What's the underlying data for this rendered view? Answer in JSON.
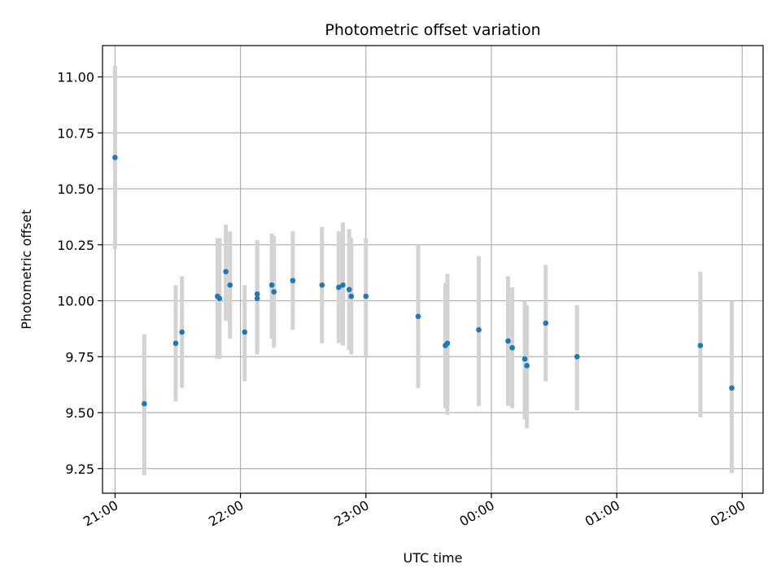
{
  "chart_data": {
    "type": "scatter",
    "title": "Photometric offset variation",
    "xlabel": "UTC time",
    "ylabel": "Photometric offset",
    "x_axis": "time",
    "xlim": [
      "20:54",
      "02:10"
    ],
    "ylim": [
      9.14,
      11.14
    ],
    "xticks": [
      "21:00",
      "22:00",
      "23:00",
      "00:00",
      "01:00",
      "02:00"
    ],
    "yticks": [
      9.25,
      9.5,
      9.75,
      10.0,
      10.25,
      10.5,
      10.75,
      11.0
    ],
    "ytick_labels": [
      "9.25",
      "9.50",
      "9.75",
      "10.00",
      "10.25",
      "10.50",
      "10.75",
      "11.00"
    ],
    "grid": true,
    "colors": {
      "points": "#1f77b4",
      "errorbars": "#d3d3d3",
      "grid": "#b0b0b0"
    },
    "points": [
      {
        "t": "21:00",
        "y": 10.64,
        "lo": 10.23,
        "hi": 11.05
      },
      {
        "t": "21:14",
        "y": 9.54,
        "lo": 9.22,
        "hi": 9.85
      },
      {
        "t": "21:29",
        "y": 9.81,
        "lo": 9.55,
        "hi": 10.07
      },
      {
        "t": "21:32",
        "y": 9.86,
        "lo": 9.61,
        "hi": 10.11
      },
      {
        "t": "21:49",
        "y": 10.02,
        "lo": 9.74,
        "hi": 10.28
      },
      {
        "t": "21:50",
        "y": 10.01,
        "lo": 9.74,
        "hi": 10.28
      },
      {
        "t": "21:53",
        "y": 10.13,
        "lo": 9.91,
        "hi": 10.34
      },
      {
        "t": "21:55",
        "y": 10.07,
        "lo": 9.83,
        "hi": 10.31
      },
      {
        "t": "22:02",
        "y": 9.86,
        "lo": 9.64,
        "hi": 10.07
      },
      {
        "t": "22:08",
        "y": 10.01,
        "lo": 9.76,
        "hi": 10.27
      },
      {
        "t": "22:08",
        "y": 10.03,
        "lo": 9.79,
        "hi": 10.27
      },
      {
        "t": "22:15",
        "y": 10.07,
        "lo": 9.83,
        "hi": 10.3
      },
      {
        "t": "22:16",
        "y": 10.04,
        "lo": 9.79,
        "hi": 10.29
      },
      {
        "t": "22:25",
        "y": 10.09,
        "lo": 9.87,
        "hi": 10.31
      },
      {
        "t": "22:39",
        "y": 10.07,
        "lo": 9.81,
        "hi": 10.33
      },
      {
        "t": "22:47",
        "y": 10.06,
        "lo": 9.81,
        "hi": 10.31
      },
      {
        "t": "22:49",
        "y": 10.07,
        "lo": 9.8,
        "hi": 10.35
      },
      {
        "t": "22:52",
        "y": 10.05,
        "lo": 9.78,
        "hi": 10.32
      },
      {
        "t": "22:53",
        "y": 10.02,
        "lo": 9.76,
        "hi": 10.28
      },
      {
        "t": "23:00",
        "y": 10.02,
        "lo": 9.75,
        "hi": 10.28
      },
      {
        "t": "23:25",
        "y": 9.93,
        "lo": 9.61,
        "hi": 10.25
      },
      {
        "t": "23:38",
        "y": 9.8,
        "lo": 9.52,
        "hi": 10.08
      },
      {
        "t": "23:39",
        "y": 9.81,
        "lo": 9.49,
        "hi": 10.12
      },
      {
        "t": "23:54",
        "y": 9.87,
        "lo": 9.53,
        "hi": 10.2
      },
      {
        "t": "00:08",
        "y": 9.82,
        "lo": 9.53,
        "hi": 10.11
      },
      {
        "t": "00:10",
        "y": 9.79,
        "lo": 9.52,
        "hi": 10.06
      },
      {
        "t": "00:16",
        "y": 9.74,
        "lo": 9.47,
        "hi": 10.0
      },
      {
        "t": "00:17",
        "y": 9.71,
        "lo": 9.43,
        "hi": 9.98
      },
      {
        "t": "00:26",
        "y": 9.9,
        "lo": 9.64,
        "hi": 10.16
      },
      {
        "t": "00:41",
        "y": 9.75,
        "lo": 9.51,
        "hi": 9.98
      },
      {
        "t": "01:40",
        "y": 9.8,
        "lo": 9.48,
        "hi": 10.13
      },
      {
        "t": "01:55",
        "y": 9.61,
        "lo": 9.23,
        "hi": 10.0
      }
    ]
  }
}
